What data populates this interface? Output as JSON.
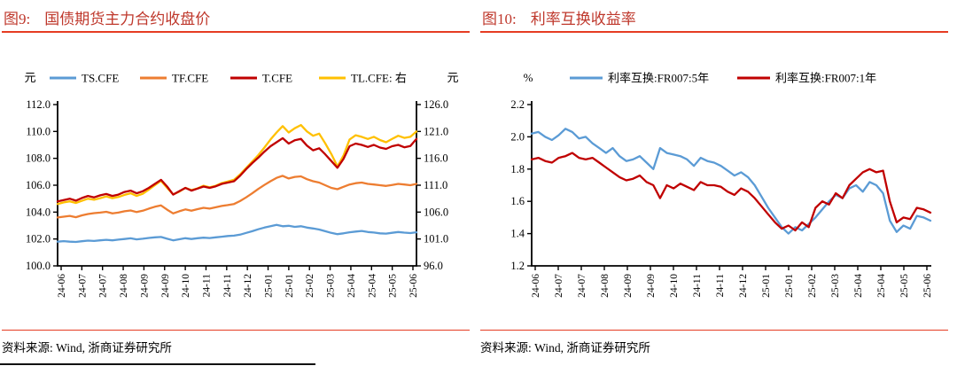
{
  "colors": {
    "accent_red": "#e63c23",
    "title_red": "#bf382c",
    "series_blue": "#5B9BD5",
    "series_orange": "#ED7D31",
    "series_dark_red": "#C00000",
    "series_yellow": "#FFC000",
    "axis_black": "#000000"
  },
  "figures": [
    {
      "title_label": "图9:",
      "title": "国债期货主力合约收盘价",
      "source": "资料来源: Wind, 浙商证券研究所"
    },
    {
      "title_label": "图10:",
      "title": "利率互换收益率",
      "source": "资料来源: Wind, 浙商证券研究所"
    }
  ],
  "chart_data": [
    {
      "type": "line",
      "title": "国债期货主力合约收盘价",
      "legend_position": "top",
      "grid": false,
      "left_axis": {
        "unit": "元",
        "min": 100.0,
        "max": 112.0,
        "ticks": [
          "112.0",
          "110.0",
          "108.0",
          "106.0",
          "104.0",
          "102.0",
          "100.0"
        ]
      },
      "right_axis": {
        "unit": "元",
        "min": 96.0,
        "max": 126.0,
        "ticks": [
          "126.0",
          "121.0",
          "116.0",
          "111.0",
          "106.0",
          "101.0",
          "96.0"
        ]
      },
      "x_tick_labels": [
        "24-06",
        "24-07",
        "24-07",
        "24-08",
        "24-09",
        "24-09",
        "24-10",
        "24-11",
        "24-11",
        "24-12",
        "25-01",
        "25-01",
        "25-02",
        "25-03",
        "25-04",
        "25-04",
        "25-05",
        "25-06"
      ],
      "x_range_note": "2024-06 to 2025-06, ~weekly points",
      "series": [
        {
          "name": "TS.CFE",
          "axis": "left",
          "color": "#5B9BD5",
          "values": [
            101.8,
            101.84,
            101.8,
            101.78,
            101.83,
            101.88,
            101.85,
            101.9,
            101.94,
            101.9,
            101.95,
            102.0,
            102.05,
            101.97,
            102.02,
            102.08,
            102.12,
            102.15,
            102.02,
            101.9,
            101.98,
            102.06,
            102.0,
            102.06,
            102.1,
            102.07,
            102.12,
            102.17,
            102.22,
            102.25,
            102.32,
            102.45,
            102.58,
            102.72,
            102.85,
            102.95,
            103.05,
            102.95,
            102.98,
            102.9,
            102.95,
            102.85,
            102.78,
            102.7,
            102.58,
            102.45,
            102.36,
            102.42,
            102.5,
            102.55,
            102.6,
            102.52,
            102.48,
            102.42,
            102.4,
            102.46,
            102.52,
            102.47,
            102.44,
            102.5
          ]
        },
        {
          "name": "TF.CFE",
          "axis": "left",
          "color": "#ED7D31",
          "values": [
            103.6,
            103.66,
            103.72,
            103.62,
            103.76,
            103.86,
            103.92,
            103.96,
            104.02,
            103.9,
            103.96,
            104.06,
            104.12,
            104.0,
            104.1,
            104.26,
            104.4,
            104.5,
            104.18,
            103.9,
            104.06,
            104.2,
            104.1,
            104.22,
            104.32,
            104.26,
            104.36,
            104.46,
            104.52,
            104.6,
            104.82,
            105.1,
            105.4,
            105.72,
            106.02,
            106.3,
            106.55,
            106.7,
            106.5,
            106.62,
            106.66,
            106.45,
            106.3,
            106.2,
            106.0,
            105.8,
            105.7,
            105.88,
            106.05,
            106.15,
            106.2,
            106.1,
            106.05,
            106.0,
            105.95,
            106.02,
            106.1,
            106.05,
            106.0,
            106.1
          ]
        },
        {
          "name": "T.CFE",
          "axis": "left",
          "color": "#C00000",
          "values": [
            104.8,
            104.9,
            105.0,
            104.85,
            105.05,
            105.2,
            105.1,
            105.25,
            105.35,
            105.2,
            105.3,
            105.5,
            105.6,
            105.4,
            105.55,
            105.8,
            106.1,
            106.4,
            105.9,
            105.3,
            105.55,
            105.8,
            105.6,
            105.75,
            105.9,
            105.8,
            105.92,
            106.1,
            106.2,
            106.3,
            106.7,
            107.2,
            107.65,
            108.05,
            108.5,
            108.9,
            109.2,
            109.5,
            109.1,
            109.35,
            109.45,
            108.95,
            108.6,
            108.75,
            108.3,
            107.8,
            107.3,
            107.95,
            108.9,
            109.1,
            109.0,
            108.85,
            109.0,
            108.8,
            108.7,
            108.9,
            109.0,
            108.82,
            108.92,
            109.45
          ]
        },
        {
          "name": "TL.CFE: 右",
          "axis": "right",
          "color": "#FFC000",
          "values": [
            107.5,
            107.8,
            108.0,
            107.7,
            108.1,
            108.5,
            108.3,
            108.6,
            108.9,
            108.6,
            108.8,
            109.2,
            109.5,
            109.0,
            109.4,
            110.2,
            111.0,
            111.8,
            110.5,
            109.3,
            109.8,
            110.5,
            110.1,
            110.4,
            110.9,
            110.6,
            110.9,
            111.4,
            111.7,
            112.0,
            113.0,
            114.2,
            115.4,
            116.6,
            118.0,
            119.5,
            120.8,
            122.0,
            120.8,
            121.6,
            122.2,
            121.0,
            120.2,
            120.6,
            118.8,
            116.8,
            114.5,
            116.5,
            119.5,
            120.3,
            120.0,
            119.6,
            120.0,
            119.4,
            119.0,
            119.6,
            120.2,
            119.8,
            120.0,
            121.0
          ]
        }
      ]
    },
    {
      "type": "line",
      "title": "利率互换收益率",
      "legend_position": "top",
      "grid": false,
      "left_axis": {
        "unit": "%",
        "min": 1.2,
        "max": 2.2,
        "ticks": [
          "2.2",
          "2.0",
          "1.8",
          "1.6",
          "1.4",
          "1.2"
        ]
      },
      "x_tick_labels": [
        "24-06",
        "24-07",
        "24-07",
        "24-08",
        "24-09",
        "24-09",
        "24-10",
        "24-11",
        "24-11",
        "24-12",
        "25-01",
        "25-01",
        "25-02",
        "25-03",
        "25-04",
        "25-04",
        "25-05",
        "25-06"
      ],
      "x_range_note": "2024-06 to 2025-06, ~weekly points",
      "series": [
        {
          "name": "利率互换:FR007:5年",
          "axis": "left",
          "color": "#5B9BD5",
          "values": [
            2.02,
            2.03,
            2.0,
            1.98,
            2.01,
            2.05,
            2.03,
            1.99,
            2.0,
            1.96,
            1.93,
            1.9,
            1.93,
            1.88,
            1.85,
            1.86,
            1.88,
            1.84,
            1.8,
            1.93,
            1.9,
            1.89,
            1.88,
            1.86,
            1.82,
            1.87,
            1.85,
            1.84,
            1.82,
            1.79,
            1.76,
            1.78,
            1.75,
            1.7,
            1.63,
            1.56,
            1.5,
            1.44,
            1.4,
            1.44,
            1.42,
            1.46,
            1.5,
            1.55,
            1.6,
            1.64,
            1.62,
            1.68,
            1.7,
            1.66,
            1.72,
            1.7,
            1.65,
            1.48,
            1.41,
            1.45,
            1.43,
            1.51,
            1.5,
            1.48
          ]
        },
        {
          "name": "利率互换:FR007:1年",
          "axis": "left",
          "color": "#C00000",
          "values": [
            1.86,
            1.87,
            1.85,
            1.84,
            1.87,
            1.88,
            1.9,
            1.87,
            1.86,
            1.87,
            1.84,
            1.81,
            1.78,
            1.75,
            1.73,
            1.74,
            1.76,
            1.72,
            1.7,
            1.62,
            1.7,
            1.68,
            1.71,
            1.69,
            1.67,
            1.72,
            1.7,
            1.7,
            1.69,
            1.66,
            1.64,
            1.68,
            1.66,
            1.62,
            1.57,
            1.52,
            1.47,
            1.43,
            1.45,
            1.42,
            1.47,
            1.44,
            1.56,
            1.6,
            1.58,
            1.65,
            1.62,
            1.7,
            1.74,
            1.78,
            1.8,
            1.78,
            1.79,
            1.6,
            1.47,
            1.5,
            1.49,
            1.56,
            1.55,
            1.53
          ]
        }
      ]
    }
  ]
}
